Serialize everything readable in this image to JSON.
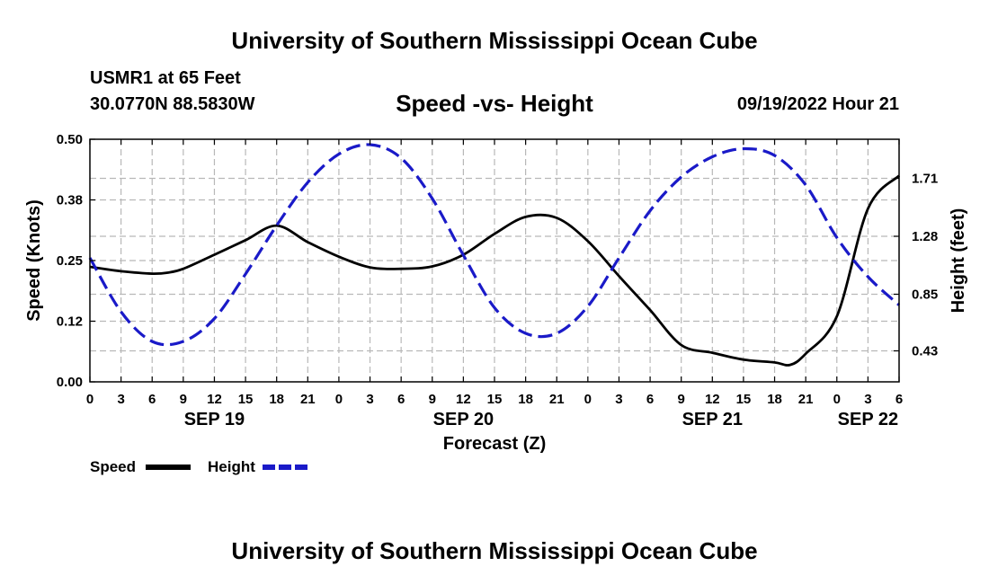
{
  "header": {
    "title": "University of Southern Mississippi Ocean Cube",
    "station": "USMR1 at 65 Feet",
    "coords": "30.0770N  88.5830W",
    "subtitle": "Speed -vs- Height",
    "datetime": "09/19/2022 Hour 21"
  },
  "footer": {
    "title": "University of Southern Mississippi Ocean Cube"
  },
  "legend": {
    "speed_label": "Speed",
    "height_label": "Height"
  },
  "chart_data": {
    "type": "line",
    "title": "Speed -vs- Height",
    "xlabel": "Forecast (Z)",
    "ylabel_left": "Speed (Knots)",
    "ylabel_right": "Height (feet)",
    "x_range_hours": [
      0,
      78
    ],
    "x_tick_hours": [
      0,
      3,
      6,
      9,
      12,
      15,
      18,
      21,
      24,
      27,
      30,
      33,
      36,
      39,
      42,
      45,
      48,
      51,
      54,
      57,
      60,
      63,
      66,
      69,
      72,
      75,
      78
    ],
    "x_tick_labels": [
      "0",
      "3",
      "6",
      "9",
      "12",
      "15",
      "18",
      "21",
      "0",
      "3",
      "6",
      "9",
      "12",
      "15",
      "18",
      "21",
      "0",
      "3",
      "6",
      "9",
      "12",
      "15",
      "18",
      "21",
      "0",
      "3",
      "6"
    ],
    "date_labels": [
      {
        "hour": 12,
        "label": "SEP 19"
      },
      {
        "hour": 36,
        "label": "SEP 20"
      },
      {
        "hour": 60,
        "label": "SEP 21"
      },
      {
        "hour": 75,
        "label": "SEP 22"
      }
    ],
    "y_left_range": [
      0,
      0.5
    ],
    "y_left_ticks": [
      0,
      0.125,
      0.25,
      0.375,
      0.5
    ],
    "y_left_tick_labels": [
      "0.00",
      "0.12",
      "0.25",
      "0.38",
      "0.50"
    ],
    "y_right_range": [
      0.2,
      2.0
    ],
    "y_right_ticks": [
      0.43,
      0.85,
      1.28,
      1.71
    ],
    "y_right_tick_labels": [
      "0.43",
      "0.85",
      "1.28",
      "1.71"
    ],
    "grid": true,
    "series": [
      {
        "name": "Speed",
        "axis": "left",
        "color": "#000000",
        "dash": "solid",
        "x": [
          0,
          3,
          6,
          7.5,
          9,
          12,
          15,
          18,
          21,
          24,
          27,
          30,
          33,
          36,
          39,
          42,
          45,
          48,
          51,
          54,
          57,
          60,
          63,
          66,
          67.5,
          69,
          72,
          75,
          78
        ],
        "values": [
          0.237,
          0.228,
          0.223,
          0.225,
          0.233,
          0.262,
          0.292,
          0.322,
          0.288,
          0.258,
          0.236,
          0.233,
          0.238,
          0.262,
          0.305,
          0.34,
          0.338,
          0.29,
          0.218,
          0.148,
          0.076,
          0.06,
          0.046,
          0.04,
          0.035,
          0.058,
          0.135,
          0.357,
          0.425
        ]
      },
      {
        "name": "Height",
        "axis": "right",
        "color": "#1a1ac8",
        "dash": "dashed",
        "x": [
          0,
          3,
          6,
          9,
          12,
          15,
          18,
          21,
          24,
          27,
          30,
          33,
          36,
          39,
          42,
          45,
          48,
          51,
          54,
          57,
          60,
          63,
          66,
          69,
          72,
          75,
          78
        ],
        "values": [
          1.12,
          0.72,
          0.5,
          0.5,
          0.67,
          1.0,
          1.36,
          1.68,
          1.89,
          1.96,
          1.86,
          1.56,
          1.14,
          0.75,
          0.56,
          0.56,
          0.76,
          1.12,
          1.47,
          1.72,
          1.87,
          1.93,
          1.88,
          1.66,
          1.27,
          0.98,
          0.77
        ]
      }
    ]
  }
}
